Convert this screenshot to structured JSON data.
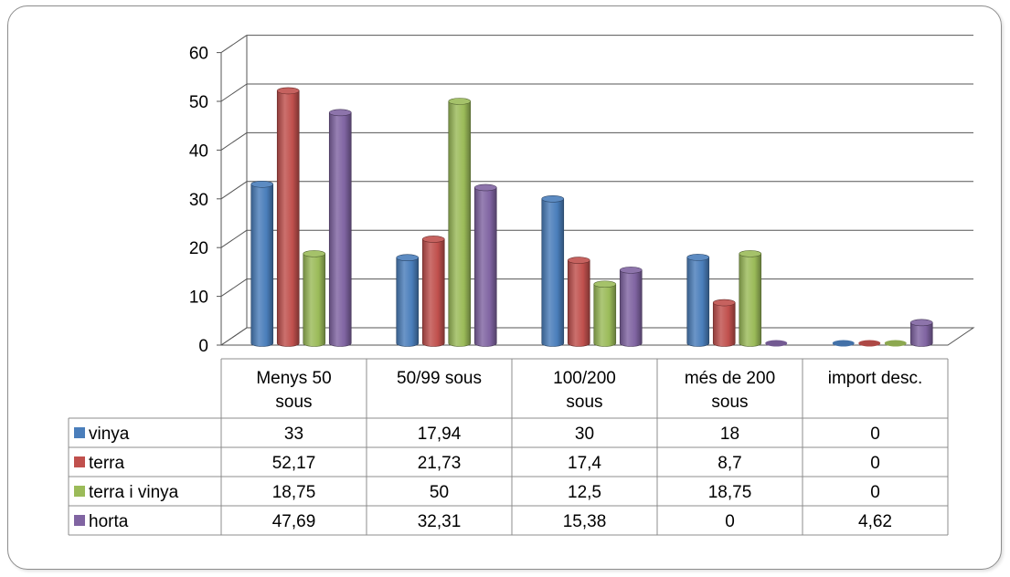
{
  "chart_data": {
    "type": "bar",
    "subtype": "3d-clustered-column-with-data-table",
    "title": "",
    "xlabel": "",
    "ylabel": "",
    "ylim": [
      0,
      60
    ],
    "yticks": [
      0,
      10,
      20,
      30,
      40,
      50,
      60
    ],
    "grid": true,
    "legend_placement": "data-table-left",
    "categories": [
      [
        "Menys 50",
        "sous"
      ],
      [
        "50/99 sous"
      ],
      [
        "100/200",
        "sous"
      ],
      [
        "més de 200",
        "sous"
      ],
      [
        "import desc."
      ]
    ],
    "series": [
      {
        "name": "vinya",
        "color": "#4a7ebb",
        "values": [
          33,
          17.94,
          30,
          18,
          0
        ],
        "labels": [
          "33",
          "17,94",
          "30",
          "18",
          "0"
        ]
      },
      {
        "name": "terra",
        "color": "#c0504d",
        "values": [
          52.17,
          21.73,
          17.4,
          8.7,
          0
        ],
        "labels": [
          "52,17",
          "21,73",
          "17,4",
          "8,7",
          "0"
        ]
      },
      {
        "name": "terra i vinya",
        "color": "#9bbb59",
        "values": [
          18.75,
          50,
          12.5,
          18.75,
          0
        ],
        "labels": [
          "18,75",
          "50",
          "12,5",
          "18,75",
          "0"
        ]
      },
      {
        "name": "horta",
        "color": "#8064a2",
        "values": [
          47.69,
          32.31,
          15.38,
          0,
          4.62
        ],
        "labels": [
          "47,69",
          "32,31",
          "15,38",
          "0",
          "4,62"
        ]
      }
    ]
  }
}
